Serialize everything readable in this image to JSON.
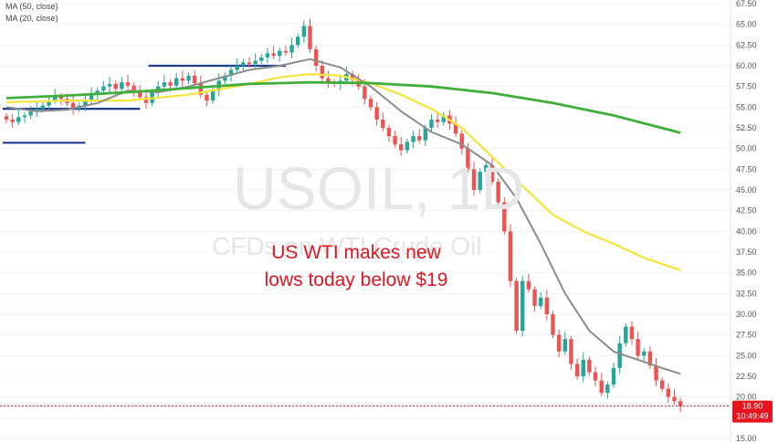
{
  "watermark": {
    "symbol": "USOIL, 1D",
    "description": "CFDs on WTI Crude Oil"
  },
  "indicators": [
    {
      "label": "MA (50, close)",
      "color": "#f5e53a"
    },
    {
      "label": "MA (20, close)",
      "color": "#8c8c8c"
    }
  ],
  "annotation": {
    "line1": "US WTI makes new",
    "line2": "lows today below $19"
  },
  "price_tag": {
    "price": "18.90",
    "countdown": "10:49:49",
    "color": "#e5141f"
  },
  "colors": {
    "up_candle": "#26a69a",
    "down_candle": "#ef5350",
    "ma_green": "#3fae3a",
    "ma_yellow": "#f5e53a",
    "ma_grey": "#8c8c8c",
    "level_lines": "#1f3a93"
  },
  "chart_data": {
    "type": "line",
    "symbol": "USOIL",
    "timeframe": "1D",
    "ylim": [
      15.0,
      67.5
    ],
    "y_ticks": [
      "67.50",
      "65.00",
      "62.50",
      "60.00",
      "57.50",
      "55.00",
      "52.50",
      "50.00",
      "47.50",
      "45.00",
      "42.50",
      "40.00",
      "37.50",
      "35.00",
      "32.50",
      "30.00",
      "27.50",
      "25.00",
      "22.50",
      "20.00",
      "17.50",
      "15.00"
    ],
    "last_price": 18.9,
    "candles_close": [
      53.5,
      53.2,
      53.8,
      54.0,
      54.5,
      54.8,
      55.2,
      55.8,
      56.3,
      56.0,
      55.5,
      54.8,
      55.2,
      55.8,
      56.5,
      57.0,
      57.5,
      57.8,
      57.2,
      58.0,
      57.6,
      57.0,
      56.2,
      55.5,
      56.8,
      57.5,
      58.0,
      57.6,
      58.5,
      58.2,
      58.8,
      57.9,
      56.5,
      55.8,
      57.0,
      58.2,
      58.8,
      59.5,
      60.0,
      60.4,
      60.2,
      60.6,
      61.0,
      61.5,
      61.2,
      61.8,
      61.6,
      62.5,
      63.5,
      64.8,
      62.0,
      60.0,
      58.5,
      58.0,
      57.8,
      58.2,
      59.0,
      58.3,
      57.5,
      56.0,
      55.0,
      53.5,
      52.5,
      51.5,
      50.5,
      49.8,
      50.8,
      51.5,
      51.0,
      52.5,
      53.5,
      53.2,
      54.0,
      53.0,
      51.8,
      50.0,
      47.5,
      45.0,
      47.2,
      48.0,
      46.0,
      43.5,
      40.0,
      34.0,
      28.0,
      34.0,
      33.0,
      31.0,
      32.0,
      30.0,
      27.5,
      25.5,
      27.0,
      24.0,
      22.5,
      24.5,
      23.0,
      22.0,
      20.5,
      21.5,
      23.5,
      26.5,
      28.5,
      27.0,
      25.0,
      25.5,
      23.8,
      22.0,
      21.0,
      20.0,
      19.5,
      18.9
    ],
    "series": [
      {
        "name": "MA (50, close)",
        "x": [
          0,
          10,
          20,
          30,
          40,
          45,
          50,
          55,
          60,
          65,
          70,
          75,
          80,
          85,
          90,
          95,
          100,
          105,
          111
        ],
        "values": [
          55.6,
          55.8,
          55.8,
          56.5,
          57.8,
          58.6,
          59.0,
          58.8,
          57.9,
          56.5,
          54.8,
          52.5,
          49.0,
          45.5,
          42.0,
          40.0,
          38.5,
          36.8,
          35.3
        ]
      },
      {
        "name": "MA (20, close)",
        "x": [
          0,
          5,
          10,
          15,
          20,
          25,
          30,
          35,
          40,
          45,
          50,
          55,
          60,
          65,
          70,
          75,
          80,
          84,
          88,
          92,
          96,
          100,
          104,
          108,
          111
        ],
        "values": [
          55.0,
          54.5,
          54.7,
          55.5,
          57.0,
          56.8,
          57.5,
          58.5,
          59.5,
          60.0,
          60.8,
          59.8,
          57.5,
          54.5,
          52.0,
          50.5,
          48.0,
          44.0,
          38.5,
          32.5,
          28.0,
          25.5,
          24.5,
          23.5,
          22.8
        ]
      },
      {
        "name": "green",
        "x": [
          0,
          10,
          20,
          30,
          40,
          50,
          60,
          70,
          80,
          90,
          100,
          111
        ],
        "values": [
          56.1,
          56.4,
          56.8,
          57.3,
          57.8,
          58.0,
          57.9,
          57.5,
          56.7,
          55.5,
          54.0,
          51.9
        ]
      }
    ],
    "level_lines": [
      {
        "price": 50.7,
        "x_from": 0,
        "x_to": 13
      },
      {
        "price": 54.8,
        "x_from": 0,
        "x_to": 22
      },
      {
        "price": 60.0,
        "x_from": 24,
        "x_to": 46
      }
    ]
  }
}
